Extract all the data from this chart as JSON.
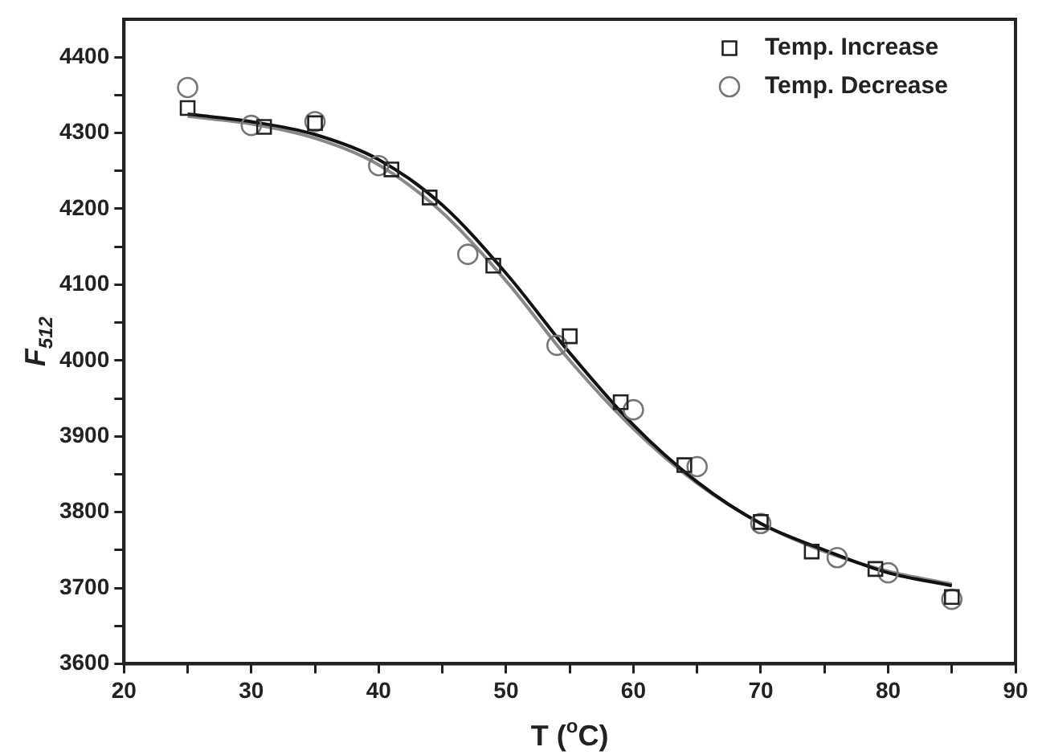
{
  "chart_data": {
    "type": "scatter",
    "xlabel": "T ($^{o}$C)",
    "ylabel": "F$_{512}$",
    "xlim": [
      20,
      90
    ],
    "xticks": [
      20,
      {
        "value": 25,
        "label": null
      },
      30,
      {
        "value": 35,
        "label": null
      },
      40,
      {
        "value": 45,
        "label": null
      },
      50,
      {
        "value": 55,
        "label": null
      },
      60,
      {
        "value": 65,
        "label": null
      },
      70,
      {
        "value": 75,
        "label": null
      },
      80,
      {
        "value": 85,
        "label": null
      },
      90
    ],
    "ylim": [
      3600,
      4450
    ],
    "yticks": [
      3600,
      {
        "value": 3650,
        "label": null
      },
      3700,
      {
        "value": 3750,
        "label": null
      },
      3800,
      {
        "value": 3850,
        "label": null
      },
      3900,
      {
        "value": 3950,
        "label": null
      },
      4000,
      {
        "value": 4050,
        "label": null
      },
      4100,
      {
        "value": 4150,
        "label": null
      },
      4200,
      {
        "value": 4250,
        "label": null
      },
      4300,
      {
        "value": 4350,
        "label": null
      },
      4400
    ],
    "grid": false,
    "legend": "top right",
    "series": [
      {
        "name": "Temp. Increase",
        "color": "#222222",
        "marker": "square",
        "x": [
          25,
          31,
          35,
          41,
          44,
          49,
          55,
          59,
          64,
          70,
          74,
          79,
          85
        ],
        "values": [
          4333,
          4308,
          4313,
          4252,
          4215,
          4125,
          4032,
          3945,
          3862,
          3787,
          3748,
          3725,
          3688
        ]
      },
      {
        "name": "Temp. Decrease",
        "color": "#777777",
        "marker": "circle",
        "x": [
          25,
          30,
          35,
          40,
          47,
          54,
          60,
          65,
          70,
          76,
          80,
          85
        ],
        "values": [
          4360,
          4310,
          4315,
          4257,
          4140,
          4020,
          3935,
          3860,
          3785,
          3740,
          3720,
          3685
        ]
      },
      {
        "type": "line",
        "color": "#111111",
        "marker": "none",
        "x": [
          25,
          30,
          35,
          40,
          45,
          50,
          55,
          60,
          65,
          70,
          75,
          80,
          85
        ],
        "values": [
          4325,
          4315,
          4298,
          4265,
          4205,
          4115,
          4010,
          3915,
          3840,
          3785,
          3750,
          3720,
          3703
        ]
      },
      {
        "type": "line",
        "color": "#888888",
        "marker": "none",
        "x": [
          25,
          30,
          35,
          40,
          45,
          50,
          55,
          60,
          65,
          70,
          75,
          80,
          85
        ],
        "values": [
          4322,
          4312,
          4293,
          4258,
          4195,
          4105,
          4000,
          3910,
          3838,
          3785,
          3748,
          3722,
          3705
        ]
      }
    ]
  }
}
